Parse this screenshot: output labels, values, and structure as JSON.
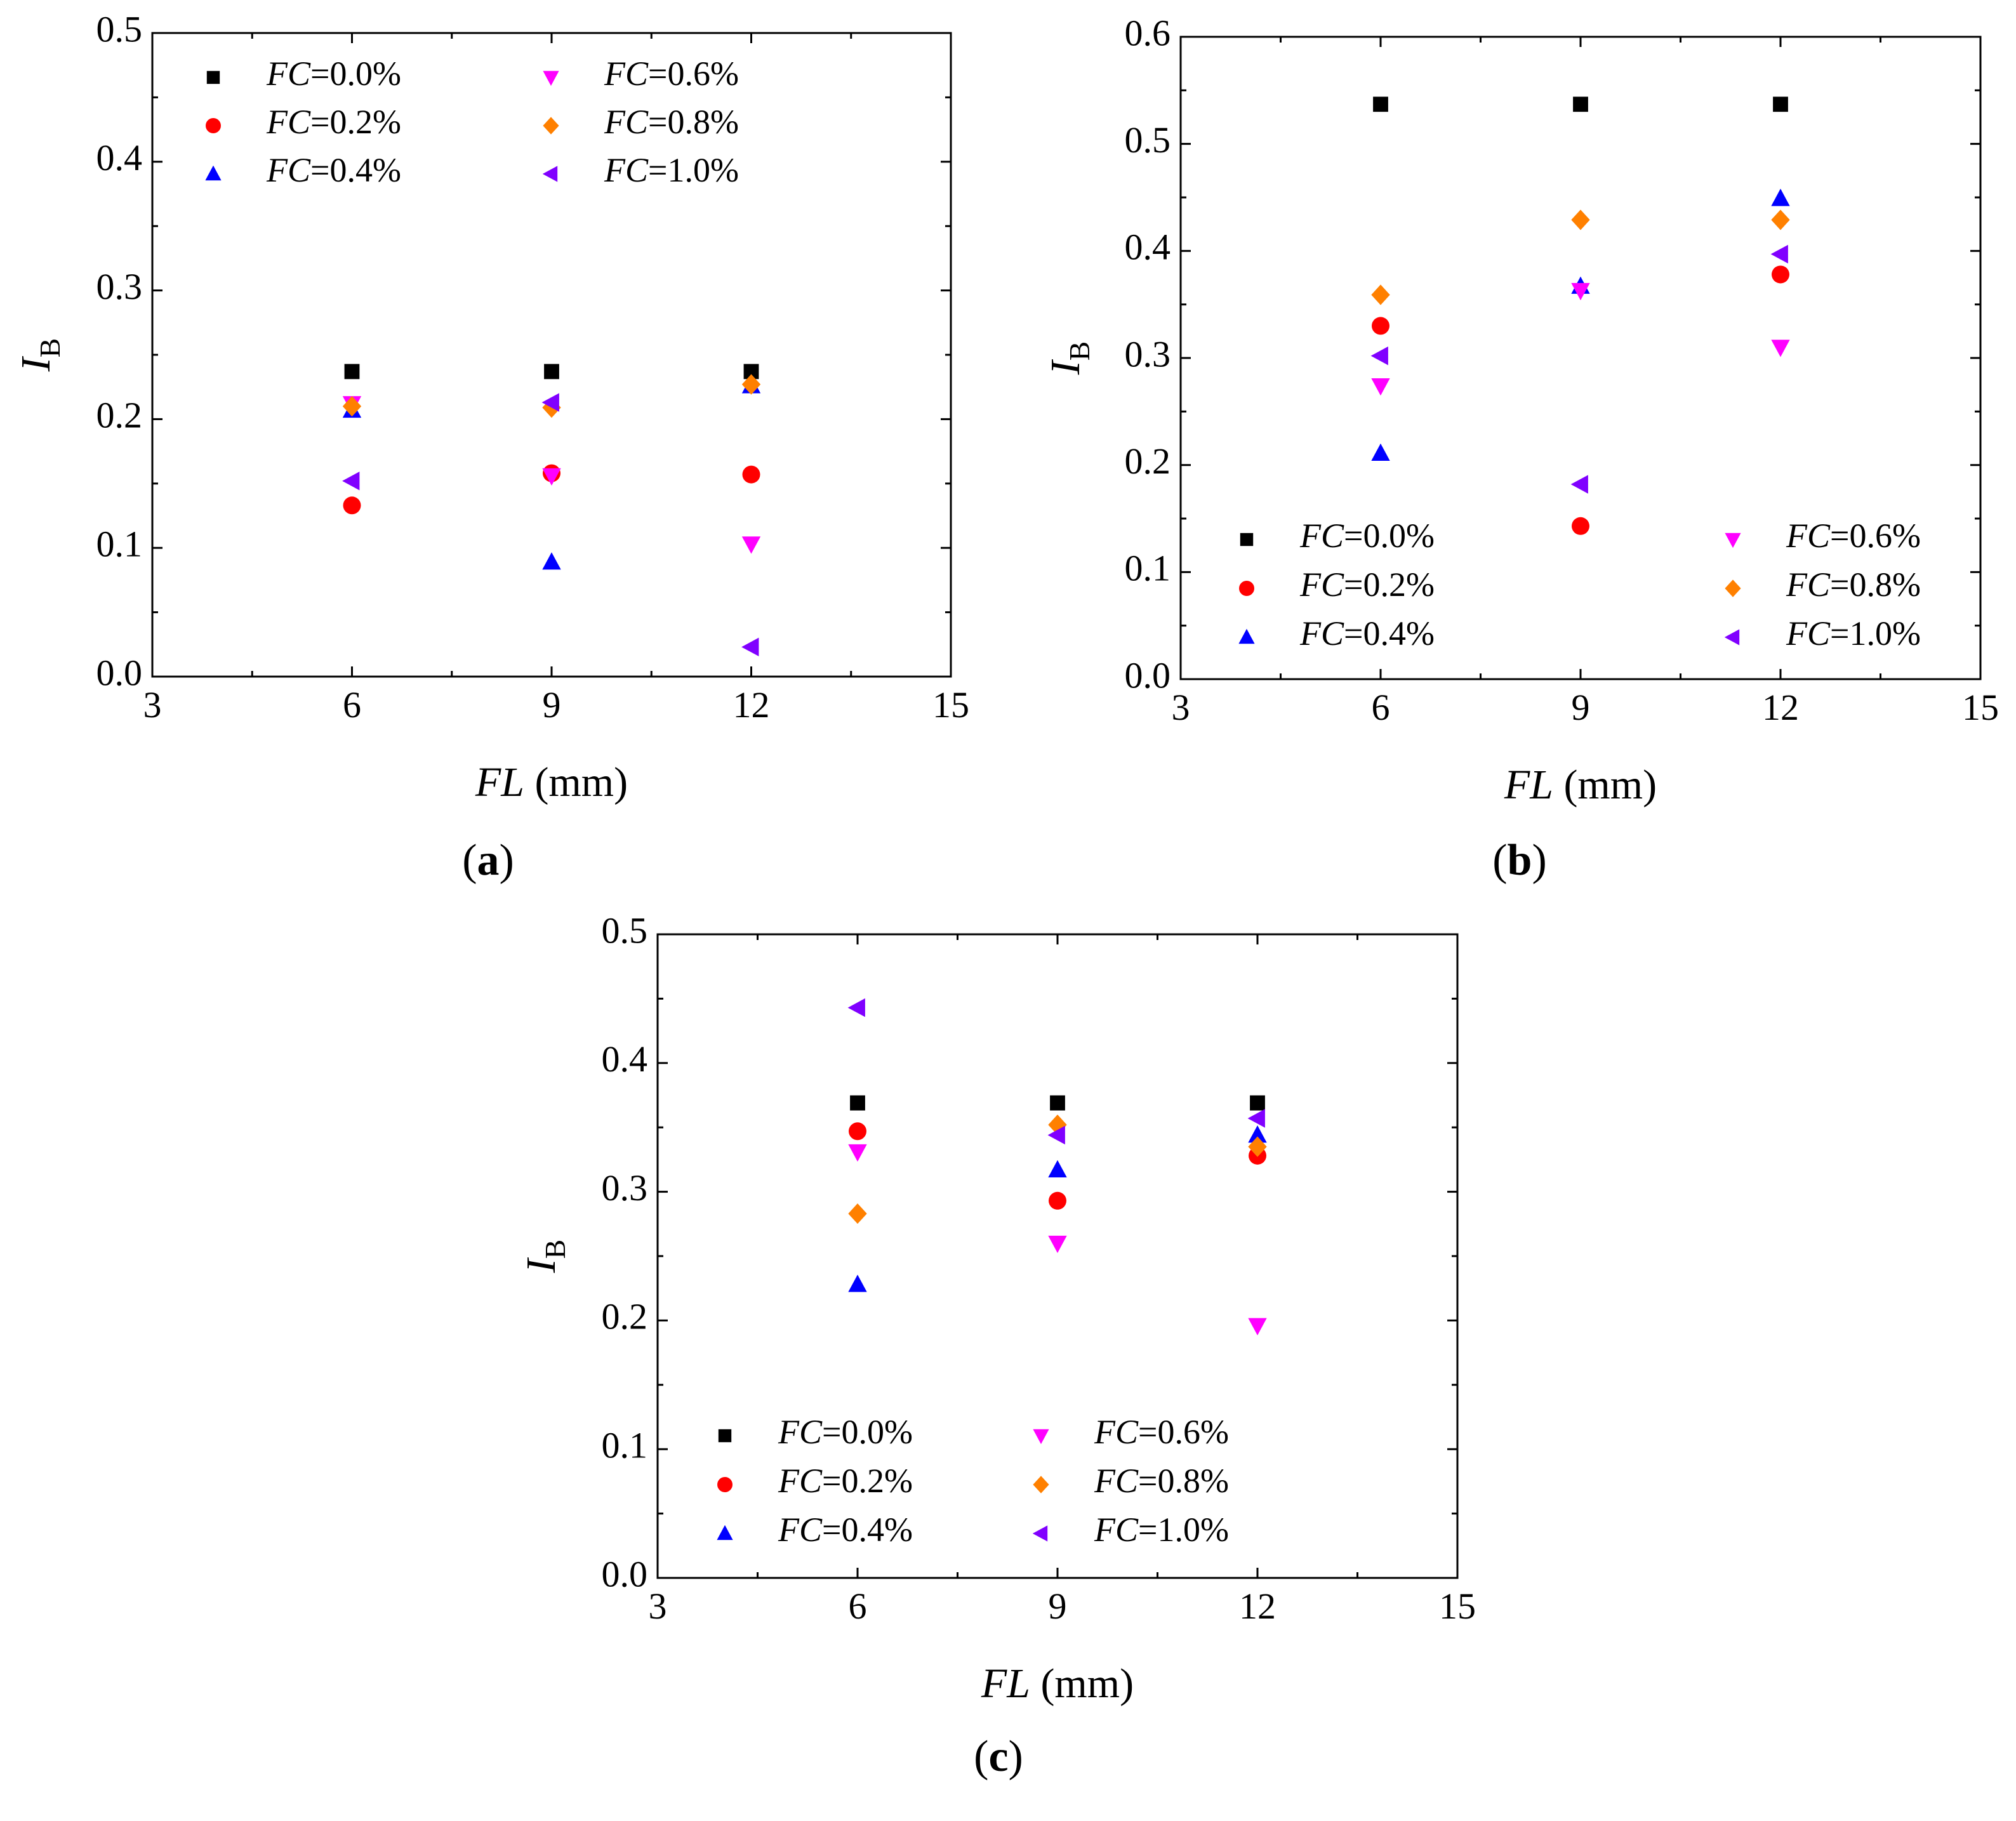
{
  "figure": {
    "captions": [
      "(a)",
      "(b)",
      "(c)"
    ]
  },
  "legend_labels": [
    "FC=0.0%",
    "FC=0.2%",
    "FC=0.4%",
    "FC=0.6%",
    "FC=0.8%",
    "FC=1.0%"
  ],
  "chart_data": [
    {
      "type": "scatter",
      "panel": "a",
      "caption": "(a)",
      "xlabel": "FL (mm)",
      "ylabel": "IB",
      "xlim": [
        3,
        15
      ],
      "ylim": [
        0.0,
        0.5
      ],
      "xticks": [
        "3",
        "6",
        "9",
        "12",
        "15"
      ],
      "yticks": [
        "0.0",
        "0.1",
        "0.2",
        "0.3",
        "0.4",
        "0.5"
      ],
      "legend_position": "top-left",
      "x": [
        6,
        9,
        12
      ],
      "series": [
        {
          "name": "FC=0.0%",
          "marker": "square",
          "color": "#000000",
          "values": [
            0.237,
            0.237,
            0.237
          ]
        },
        {
          "name": "FC=0.2%",
          "marker": "circle",
          "color": "#ff0000",
          "values": [
            0.133,
            0.158,
            0.157
          ]
        },
        {
          "name": "FC=0.4%",
          "marker": "triangle-up",
          "color": "#0000ff",
          "values": [
            0.207,
            0.089,
            0.226
          ]
        },
        {
          "name": "FC=0.6%",
          "marker": "triangle-down",
          "color": "#ff00ff",
          "values": [
            0.212,
            0.156,
            0.103
          ]
        },
        {
          "name": "FC=0.8%",
          "marker": "diamond",
          "color": "#ff8000",
          "values": [
            0.21,
            0.209,
            0.227
          ]
        },
        {
          "name": "FC=1.0%",
          "marker": "triangle-left",
          "color": "#8000ff",
          "values": [
            0.152,
            0.213,
            0.023
          ]
        }
      ]
    },
    {
      "type": "scatter",
      "panel": "b",
      "caption": "(b)",
      "xlabel": "FL (mm)",
      "ylabel": "IB",
      "xlim": [
        3,
        15
      ],
      "ylim": [
        0.0,
        0.6
      ],
      "xticks": [
        "3",
        "6",
        "9",
        "12",
        "15"
      ],
      "yticks": [
        "0.0",
        "0.1",
        "0.2",
        "0.3",
        "0.4",
        "0.5",
        "0.6"
      ],
      "legend_position": "bottom",
      "x": [
        6,
        9,
        12
      ],
      "series": [
        {
          "name": "FC=0.0%",
          "marker": "square",
          "color": "#000000",
          "values": [
            0.537,
            0.537,
            0.537
          ]
        },
        {
          "name": "FC=0.2%",
          "marker": "circle",
          "color": "#ff0000",
          "values": [
            0.33,
            0.143,
            0.378
          ]
        },
        {
          "name": "FC=0.4%",
          "marker": "triangle-up",
          "color": "#0000ff",
          "values": [
            0.211,
            0.367,
            0.449
          ]
        },
        {
          "name": "FC=0.6%",
          "marker": "triangle-down",
          "color": "#ff00ff",
          "values": [
            0.274,
            0.363,
            0.31
          ]
        },
        {
          "name": "FC=0.8%",
          "marker": "diamond",
          "color": "#ff8000",
          "values": [
            0.359,
            0.429,
            0.429
          ]
        },
        {
          "name": "FC=1.0%",
          "marker": "triangle-left",
          "color": "#8000ff",
          "values": [
            0.302,
            0.182,
            0.397
          ]
        }
      ]
    },
    {
      "type": "scatter",
      "panel": "c",
      "caption": "(c)",
      "xlabel": "FL (mm)",
      "ylabel": "IB",
      "xlim": [
        3,
        15
      ],
      "ylim": [
        0.0,
        0.5
      ],
      "xticks": [
        "3",
        "6",
        "9",
        "12",
        "15"
      ],
      "yticks": [
        "0.0",
        "0.1",
        "0.2",
        "0.3",
        "0.4",
        "0.5"
      ],
      "legend_position": "bottom-left",
      "x": [
        6,
        9,
        12
      ],
      "series": [
        {
          "name": "FC=0.0%",
          "marker": "square",
          "color": "#000000",
          "values": [
            0.369,
            0.369,
            0.369
          ]
        },
        {
          "name": "FC=0.2%",
          "marker": "circle",
          "color": "#ff0000",
          "values": [
            0.347,
            0.293,
            0.328
          ]
        },
        {
          "name": "FC=0.4%",
          "marker": "triangle-up",
          "color": "#0000ff",
          "values": [
            0.228,
            0.317,
            0.344
          ]
        },
        {
          "name": "FC=0.6%",
          "marker": "triangle-down",
          "color": "#ff00ff",
          "values": [
            0.331,
            0.26,
            0.196
          ]
        },
        {
          "name": "FC=0.8%",
          "marker": "diamond",
          "color": "#ff8000",
          "values": [
            0.283,
            0.352,
            0.335
          ]
        },
        {
          "name": "FC=1.0%",
          "marker": "triangle-left",
          "color": "#8000ff",
          "values": [
            0.443,
            0.344,
            0.357
          ]
        }
      ]
    }
  ]
}
